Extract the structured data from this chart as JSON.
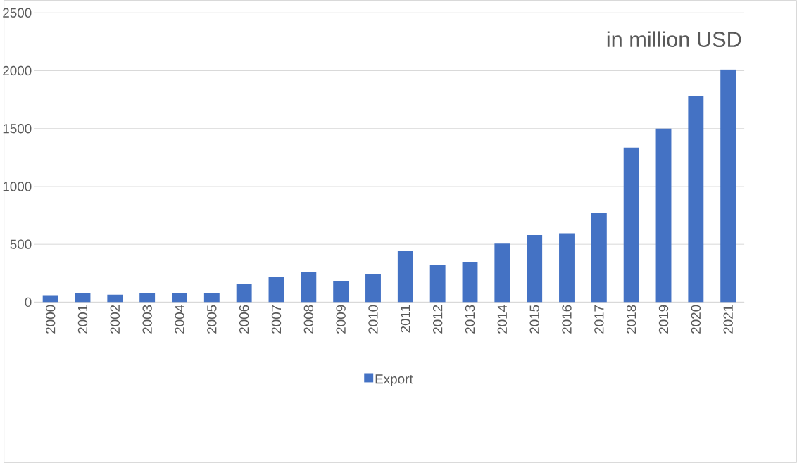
{
  "chart_data": {
    "type": "bar",
    "title": "in million USD",
    "categories": [
      "2000",
      "2001",
      "2002",
      "2003",
      "2004",
      "2005",
      "2006",
      "2007",
      "2008",
      "2009",
      "2010",
      "2011",
      "2012",
      "2013",
      "2014",
      "2015",
      "2016",
      "2017",
      "2018",
      "2019",
      "2020",
      "2021"
    ],
    "series": [
      {
        "name": "Export",
        "color": "#4472c4",
        "values": [
          60,
          75,
          65,
          80,
          80,
          75,
          157,
          215,
          260,
          182,
          240,
          440,
          320,
          345,
          505,
          580,
          595,
          770,
          1335,
          1500,
          1780,
          2010
        ]
      }
    ],
    "ylim": [
      0,
      2500
    ],
    "yticks": [
      0,
      500,
      1000,
      1500,
      2000,
      2500
    ],
    "grid": "y",
    "legend": "bottom"
  }
}
